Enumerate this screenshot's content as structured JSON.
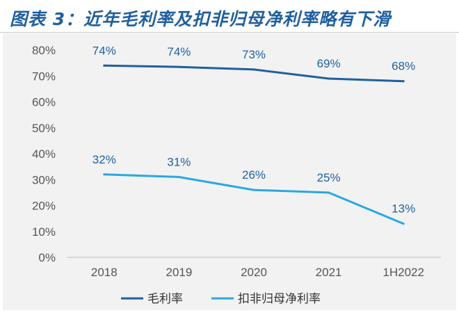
{
  "header": {
    "title": "图表 3：近年毛利率及扣非归母净利率略有下滑"
  },
  "chart_data": {
    "type": "line",
    "title": "图表 3：近年毛利率及扣非归母净利率略有下滑",
    "categories": [
      "2018",
      "2019",
      "2020",
      "2021",
      "1H2022"
    ],
    "y_ticks": [
      "0%",
      "10%",
      "20%",
      "30%",
      "40%",
      "50%",
      "60%",
      "70%",
      "80%"
    ],
    "ylim": [
      0,
      80
    ],
    "grid": false,
    "legend_position": "bottom",
    "series": [
      {
        "name": "毛利率",
        "color": "#1f5f9e",
        "values": [
          74,
          73.5,
          72.5,
          69,
          68
        ],
        "labels": [
          "74%",
          "74%",
          "73%",
          "69%",
          "68%"
        ]
      },
      {
        "name": "扣非归母净利率",
        "color": "#29a8e0",
        "values": [
          32,
          31,
          26,
          25,
          13
        ],
        "labels": [
          "32%",
          "31%",
          "26%",
          "25%",
          "13%"
        ]
      }
    ]
  }
}
